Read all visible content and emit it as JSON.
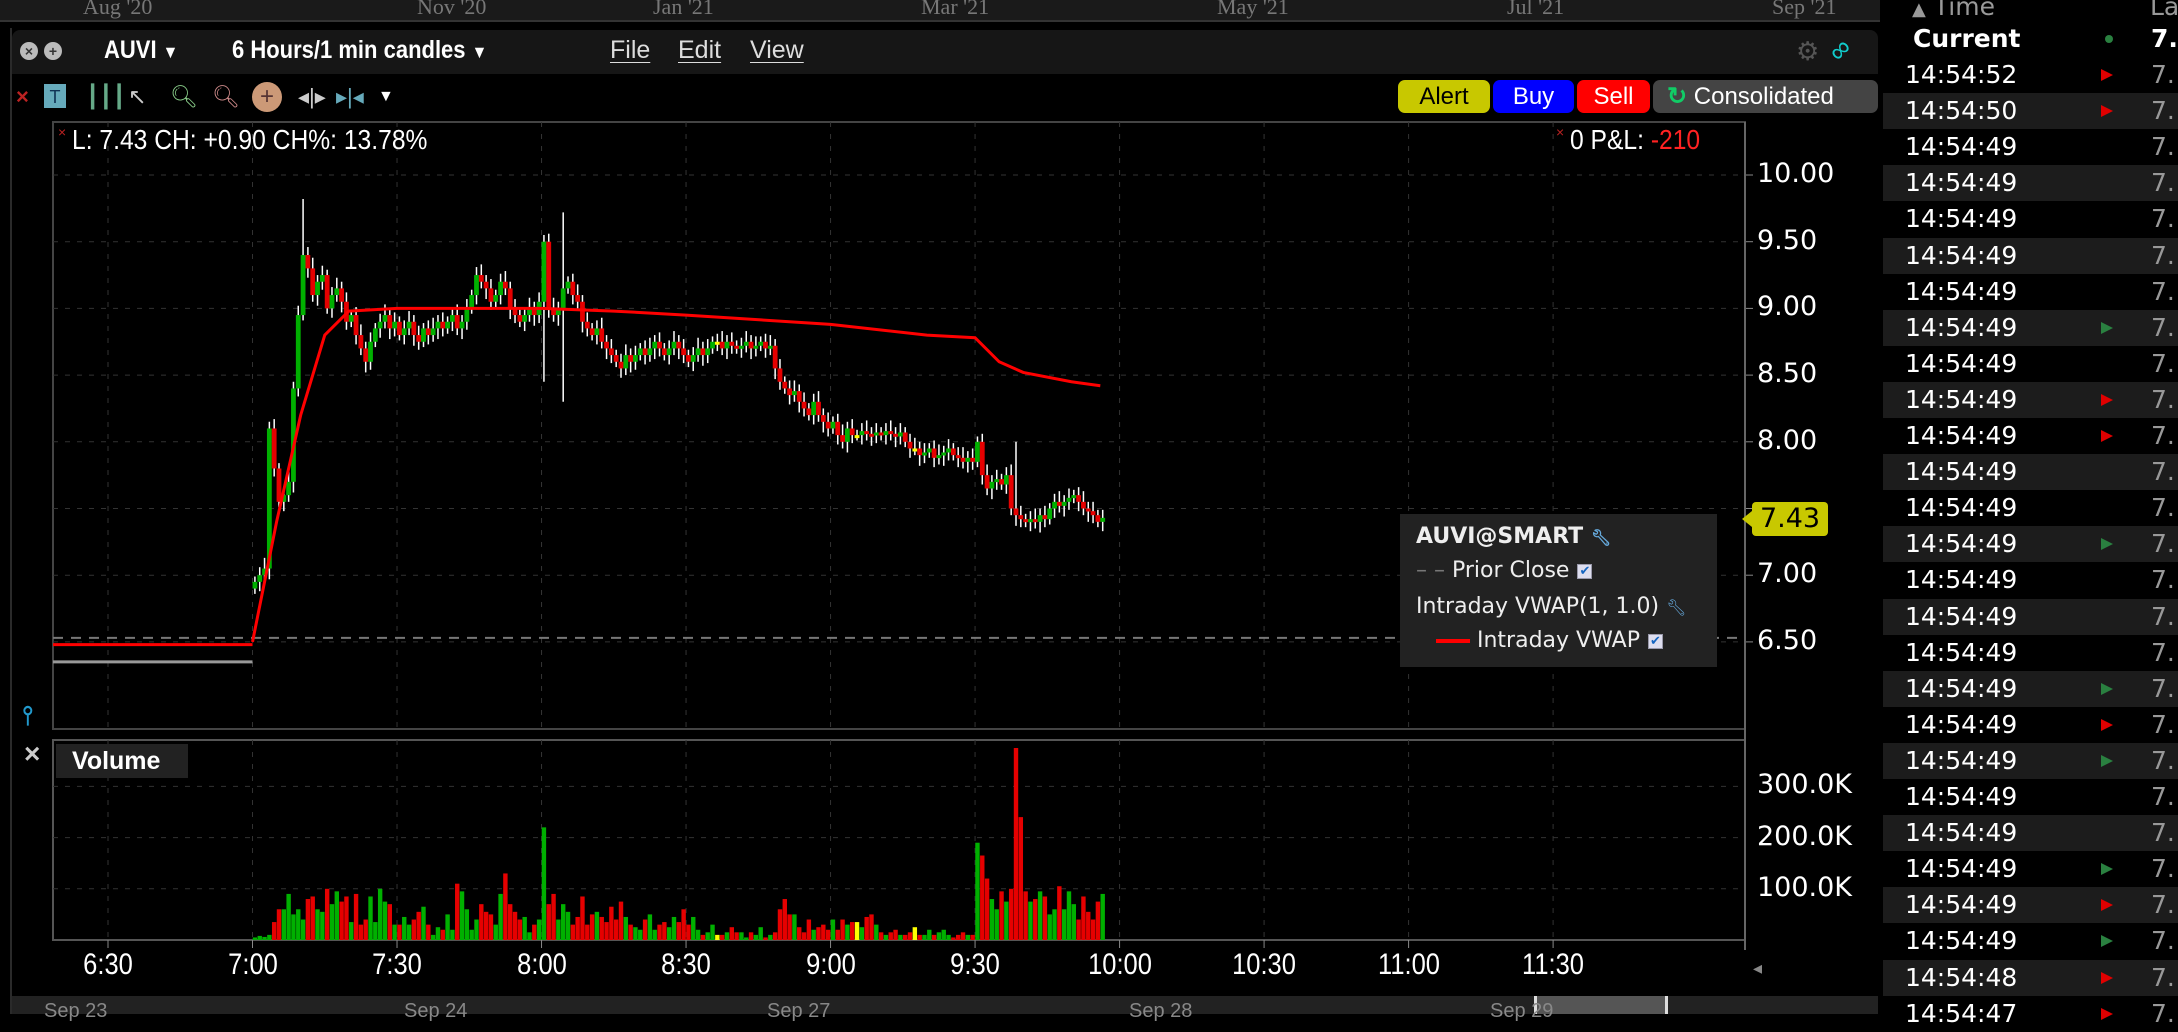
{
  "date_strip": {
    "labels": [
      "Aug '20",
      "Nov '20",
      "Jan '21",
      "Mar '21",
      "May '21",
      "Jul '21",
      "Sep '21"
    ]
  },
  "window": {
    "symbol": "AUVI",
    "period": "6 Hours/1 min candles",
    "menus": [
      "File",
      "Edit",
      "View"
    ],
    "settings_icon": "gear-icon",
    "link_icon": "link-icon"
  },
  "toolbar": {
    "icons": [
      "close-icon",
      "text-icon",
      "bars-icon",
      "cursor-icon",
      "zoom-in-icon",
      "zoom-out-icon",
      "crosshair-icon",
      "split-icon",
      "fit-icon",
      "dropdown-icon"
    ],
    "alert": "Alert",
    "buy": "Buy",
    "sell": "Sell",
    "consolidated": "Consolidated"
  },
  "info": {
    "quote": "L: 7.43 CH: +0.90 CH%: 13.78%",
    "position": "0",
    "pnl_label": "P&L:",
    "pnl_value": "-210"
  },
  "colors": {
    "up": "#00b000",
    "down": "#e60000",
    "doji": "#ffff00",
    "vwap": "#ff0000",
    "alert": "#c8c800",
    "buy": "#0000ff",
    "sell": "#ff0000",
    "price_tag": "#c8c800"
  },
  "legend": {
    "title": "AUVI@SMART",
    "prior_close": "Prior Close",
    "study": "Intraday VWAP(1, 1.0)",
    "vwap": "Intraday VWAP"
  },
  "volume_panel": {
    "label": "Volume"
  },
  "chart_data": {
    "type": "candlestick",
    "x_ticks": [
      "6:30",
      "7:00",
      "7:30",
      "8:00",
      "8:30",
      "9:00",
      "9:30",
      "10:00",
      "10:30",
      "11:00",
      "11:30"
    ],
    "x_range": [
      "6:30",
      "12:00"
    ],
    "y_ticks": [
      "10.00",
      "9.50",
      "9.00",
      "8.50",
      "8.00",
      "7.50",
      "7.00",
      "6.50"
    ],
    "y_range": [
      6.0,
      10.2
    ],
    "last_price": "7.43",
    "prior_close": 6.53,
    "premarket": {
      "from": "6:30",
      "to": "7:00",
      "price_line": 6.35,
      "vwap": 6.48
    },
    "start": "7:00",
    "close": [
      6.95,
      7.0,
      7.05,
      8.1,
      7.8,
      7.55,
      7.6,
      7.7,
      8.4,
      8.95,
      9.4,
      9.3,
      9.1,
      9.2,
      9.25,
      9.0,
      9.1,
      9.15,
      9.05,
      8.9,
      8.95,
      8.8,
      8.7,
      8.6,
      8.75,
      8.85,
      8.9,
      8.95,
      8.85,
      8.9,
      8.8,
      8.85,
      8.9,
      8.8,
      8.75,
      8.85,
      8.8,
      8.85,
      8.9,
      8.85,
      8.9,
      8.95,
      8.85,
      8.9,
      9.0,
      9.1,
      9.25,
      9.2,
      9.15,
      9.05,
      9.1,
      9.2,
      9.15,
      9.0,
      8.95,
      8.9,
      8.95,
      9.0,
      8.95,
      9.05,
      9.5,
      9.0,
      8.95,
      9.0,
      9.15,
      9.2,
      9.1,
      9.05,
      8.9,
      8.85,
      8.8,
      8.85,
      8.75,
      8.7,
      8.65,
      8.6,
      8.55,
      8.65,
      8.6,
      8.65,
      8.7,
      8.65,
      8.7,
      8.75,
      8.7,
      8.65,
      8.7,
      8.75,
      8.7,
      8.65,
      8.6,
      8.65,
      8.7,
      8.65,
      8.7,
      8.75,
      8.75,
      8.7,
      8.75,
      8.72,
      8.7,
      8.72,
      8.75,
      8.7,
      8.72,
      8.75,
      8.7,
      8.72,
      8.55,
      8.45,
      8.4,
      8.35,
      8.38,
      8.3,
      8.25,
      8.2,
      8.3,
      8.2,
      8.15,
      8.1,
      8.15,
      8.05,
      8.0,
      8.1,
      8.05,
      8.05,
      8.08,
      8.06,
      8.05,
      8.07,
      8.05,
      8.08,
      8.06,
      8.04,
      8.07,
      8.0,
      7.95,
      7.95,
      7.9,
      7.92,
      7.95,
      7.88,
      7.9,
      7.92,
      7.95,
      7.9,
      7.88,
      7.85,
      7.88,
      7.85,
      8.0,
      7.75,
      7.65,
      7.7,
      7.72,
      7.68,
      7.75,
      7.5,
      7.45,
      7.42,
      7.4,
      7.42,
      7.4,
      7.45,
      7.42,
      7.5,
      7.55,
      7.52,
      7.55,
      7.58,
      7.6,
      7.55,
      7.5,
      7.48,
      7.45,
      7.4,
      7.43
    ],
    "wick_extremes": [
      {
        "t": "7:10",
        "high": 9.82
      },
      {
        "t": "8:00",
        "high": 9.55
      },
      {
        "t": "8:04",
        "high": 9.72,
        "low": 8.3
      },
      {
        "t": "8:00",
        "low": 8.45
      },
      {
        "t": "9:38",
        "high": 8.0
      }
    ],
    "vwap": [
      [
        "7:00",
        6.5
      ],
      [
        "7:05",
        7.4
      ],
      [
        "7:10",
        8.2
      ],
      [
        "7:15",
        8.8
      ],
      [
        "7:20",
        8.98
      ],
      [
        "7:30",
        9.0
      ],
      [
        "8:00",
        9.0
      ],
      [
        "8:15",
        8.98
      ],
      [
        "8:30",
        8.95
      ],
      [
        "9:00",
        8.88
      ],
      [
        "9:20",
        8.8
      ],
      [
        "9:30",
        8.78
      ],
      [
        "9:35",
        8.6
      ],
      [
        "9:40",
        8.52
      ],
      [
        "9:50",
        8.45
      ],
      [
        "9:56",
        8.42
      ]
    ],
    "volume_ticks": [
      "300.0K",
      "200.0K",
      "100.0K"
    ],
    "volume_k": [
      5,
      8,
      6,
      10,
      35,
      60,
      60,
      90,
      50,
      60,
      40,
      80,
      85,
      60,
      55,
      100,
      70,
      95,
      75,
      85,
      35,
      90,
      30,
      40,
      85,
      35,
      100,
      75,
      70,
      30,
      30,
      45,
      30,
      40,
      55,
      65,
      30,
      10,
      25,
      20,
      50,
      20,
      110,
      95,
      60,
      20,
      40,
      70,
      55,
      50,
      30,
      90,
      130,
      70,
      55,
      40,
      45,
      15,
      30,
      40,
      220,
      70,
      90,
      40,
      70,
      55,
      30,
      45,
      85,
      30,
      50,
      55,
      45,
      35,
      65,
      40,
      75,
      45,
      30,
      25,
      20,
      40,
      50,
      20,
      30,
      35,
      25,
      45,
      35,
      60,
      30,
      45,
      20,
      10,
      15,
      30,
      10,
      10,
      15,
      25,
      15,
      15,
      5,
      15,
      10,
      25,
      5,
      10,
      15,
      60,
      80,
      50,
      50,
      25,
      15,
      40,
      20,
      25,
      30,
      20,
      40,
      20,
      40,
      30,
      35,
      35,
      25,
      45,
      50,
      30,
      15,
      10,
      15,
      20,
      10,
      10,
      15,
      25,
      10,
      10,
      20,
      10,
      15,
      20,
      10,
      5,
      10,
      15,
      10,
      10,
      190,
      165,
      120,
      80,
      60,
      95,
      75,
      100,
      375,
      240,
      95,
      75,
      80,
      95,
      85,
      50,
      60,
      105,
      60,
      95,
      70,
      40,
      85,
      55,
      40,
      75,
      90
    ]
  },
  "tape": {
    "header_time": "Time",
    "header_last": "La",
    "sort_icon": "sort-up-icon",
    "current": {
      "label": "Current",
      "last": "7."
    },
    "rows": [
      {
        "time": "14:54:52",
        "tick": "down",
        "last": "7."
      },
      {
        "time": "14:54:50",
        "tick": "down",
        "last": "7."
      },
      {
        "time": "14:54:49",
        "tick": "",
        "last": "7."
      },
      {
        "time": "14:54:49",
        "tick": "",
        "last": "7."
      },
      {
        "time": "14:54:49",
        "tick": "",
        "last": "7."
      },
      {
        "time": "14:54:49",
        "tick": "",
        "last": "7."
      },
      {
        "time": "14:54:49",
        "tick": "",
        "last": "7."
      },
      {
        "time": "14:54:49",
        "tick": "up",
        "last": "7."
      },
      {
        "time": "14:54:49",
        "tick": "",
        "last": "7."
      },
      {
        "time": "14:54:49",
        "tick": "down",
        "last": "7."
      },
      {
        "time": "14:54:49",
        "tick": "down",
        "last": "7."
      },
      {
        "time": "14:54:49",
        "tick": "",
        "last": "7."
      },
      {
        "time": "14:54:49",
        "tick": "",
        "last": "7."
      },
      {
        "time": "14:54:49",
        "tick": "up",
        "last": "7."
      },
      {
        "time": "14:54:49",
        "tick": "",
        "last": "7."
      },
      {
        "time": "14:54:49",
        "tick": "",
        "last": "7."
      },
      {
        "time": "14:54:49",
        "tick": "",
        "last": "7."
      },
      {
        "time": "14:54:49",
        "tick": "up",
        "last": "7."
      },
      {
        "time": "14:54:49",
        "tick": "down",
        "last": "7."
      },
      {
        "time": "14:54:49",
        "tick": "up",
        "last": "7."
      },
      {
        "time": "14:54:49",
        "tick": "",
        "last": "7."
      },
      {
        "time": "14:54:49",
        "tick": "",
        "last": "7."
      },
      {
        "time": "14:54:49",
        "tick": "up",
        "last": "7."
      },
      {
        "time": "14:54:49",
        "tick": "down",
        "last": "7."
      },
      {
        "time": "14:54:49",
        "tick": "up",
        "last": "7."
      },
      {
        "time": "14:54:48",
        "tick": "down",
        "last": "7."
      },
      {
        "time": "14:54:47",
        "tick": "down",
        "last": "7."
      }
    ]
  },
  "scroller": {
    "labels": [
      "Sep 23",
      "Sep 24",
      "Sep 27",
      "Sep 28",
      "Sep 29"
    ]
  }
}
